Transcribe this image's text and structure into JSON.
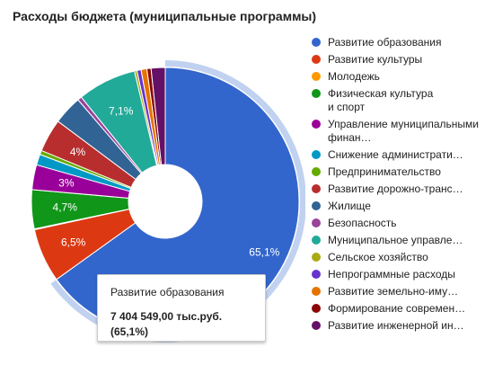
{
  "chart_data": {
    "type": "pie",
    "title": "Расходы бюджета (муниципальные программы)",
    "donut": true,
    "legend_position": "right",
    "slices": [
      {
        "label": "Развитие образования",
        "percent": 65.1,
        "value_label": "65,1%",
        "color": "#3366cc"
      },
      {
        "label": "Развитие культуры",
        "percent": 6.5,
        "value_label": "6,5%",
        "color": "#dc3912"
      },
      {
        "label": "Молодежь",
        "percent": 0.1,
        "value_label": "",
        "color": "#ff9900"
      },
      {
        "label": "Физическая культура\nи спорт",
        "percent": 4.7,
        "value_label": "4,7%",
        "color": "#109618"
      },
      {
        "label": "Управление муниципальными финан…",
        "percent": 3.0,
        "value_label": "3%",
        "color": "#990099"
      },
      {
        "label": "Снижение администрати…",
        "percent": 1.3,
        "value_label": "",
        "color": "#0099c6"
      },
      {
        "label": "Предпринимательство",
        "percent": 0.5,
        "value_label": "",
        "color": "#66aa00"
      },
      {
        "label": "Развитие дорожно-транс…",
        "percent": 4.0,
        "value_label": "4%",
        "color": "#b82e2e"
      },
      {
        "label": "Жилище",
        "percent": 3.5,
        "value_label": "",
        "color": "#316395"
      },
      {
        "label": "Безопасность",
        "percent": 0.5,
        "value_label": "",
        "color": "#994499"
      },
      {
        "label": "Муниципальное управле…",
        "percent": 7.1,
        "value_label": "7,1%",
        "color": "#22aa99"
      },
      {
        "label": "Сельское хозяйство",
        "percent": 0.3,
        "value_label": "",
        "color": "#aaaa11"
      },
      {
        "label": "Непрограммные расходы",
        "percent": 0.5,
        "value_label": "",
        "color": "#6633cc"
      },
      {
        "label": "Развитие земельно-иму…",
        "percent": 0.7,
        "value_label": "",
        "color": "#e67300"
      },
      {
        "label": "Формирование современ…",
        "percent": 0.5,
        "value_label": "",
        "color": "#8b0707"
      },
      {
        "label": "Развитие инженерной ин…",
        "percent": 1.7,
        "value_label": "",
        "color": "#651067"
      }
    ],
    "highlighted_slice": 0
  },
  "tooltip": {
    "category": "Развитие образования",
    "value": "7 404 549,00 тыс.руб.",
    "percent": "(65,1%)"
  }
}
